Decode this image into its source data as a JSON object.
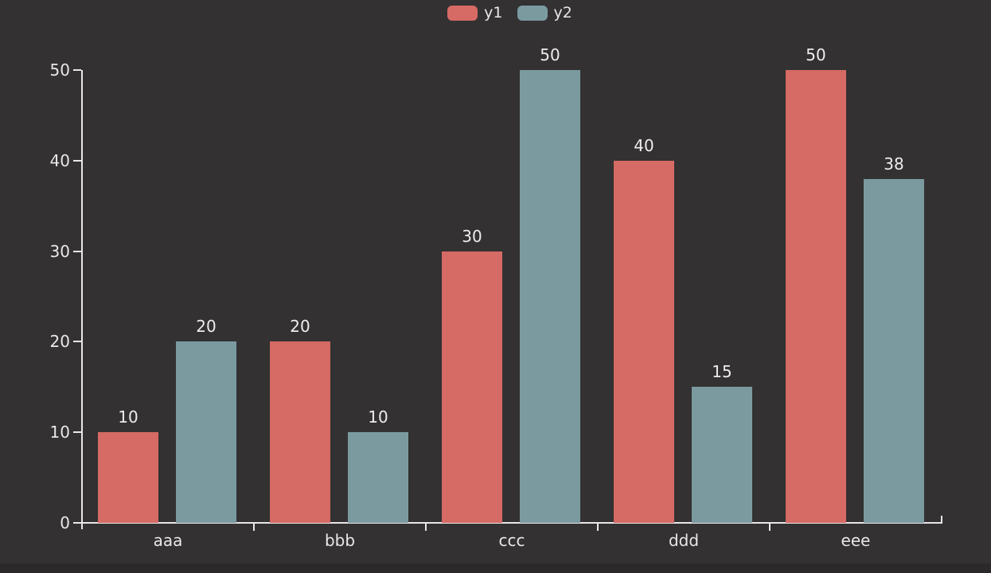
{
  "chart_data": {
    "type": "bar",
    "title": "",
    "xlabel": "",
    "ylabel": "",
    "categories": [
      "aaa",
      "bbb",
      "ccc",
      "ddd",
      "eee"
    ],
    "series": [
      {
        "name": "y1",
        "color": "#d66a64",
        "values": [
          10,
          20,
          30,
          40,
          50
        ]
      },
      {
        "name": "y2",
        "color": "#7a9aa0",
        "values": [
          20,
          10,
          50,
          15,
          38
        ]
      }
    ],
    "yticks": [
      0,
      10,
      20,
      30,
      40,
      50
    ],
    "ylim": [
      0,
      50
    ],
    "grid": false,
    "bar_value_labels_shown": true,
    "legend_position": "top-center",
    "colors": {
      "background": "#333132",
      "bottom_strip": "#2b292a",
      "axis": "#e9e7e7",
      "text": "#e9e7e7"
    }
  }
}
